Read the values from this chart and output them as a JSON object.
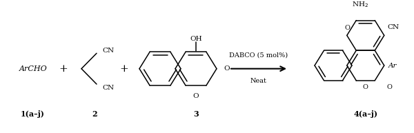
{
  "background_color": "#ffffff",
  "fig_width": 6.0,
  "fig_height": 1.93,
  "dpi": 100,
  "label_1": "1(a–j)",
  "label_2": "2",
  "label_3": "3",
  "label_4": "4(a–j)",
  "reagent_line1": "DABCO (5 mol%)",
  "reagent_line2": "Neat",
  "text_color": "#000000",
  "lw": 1.1
}
